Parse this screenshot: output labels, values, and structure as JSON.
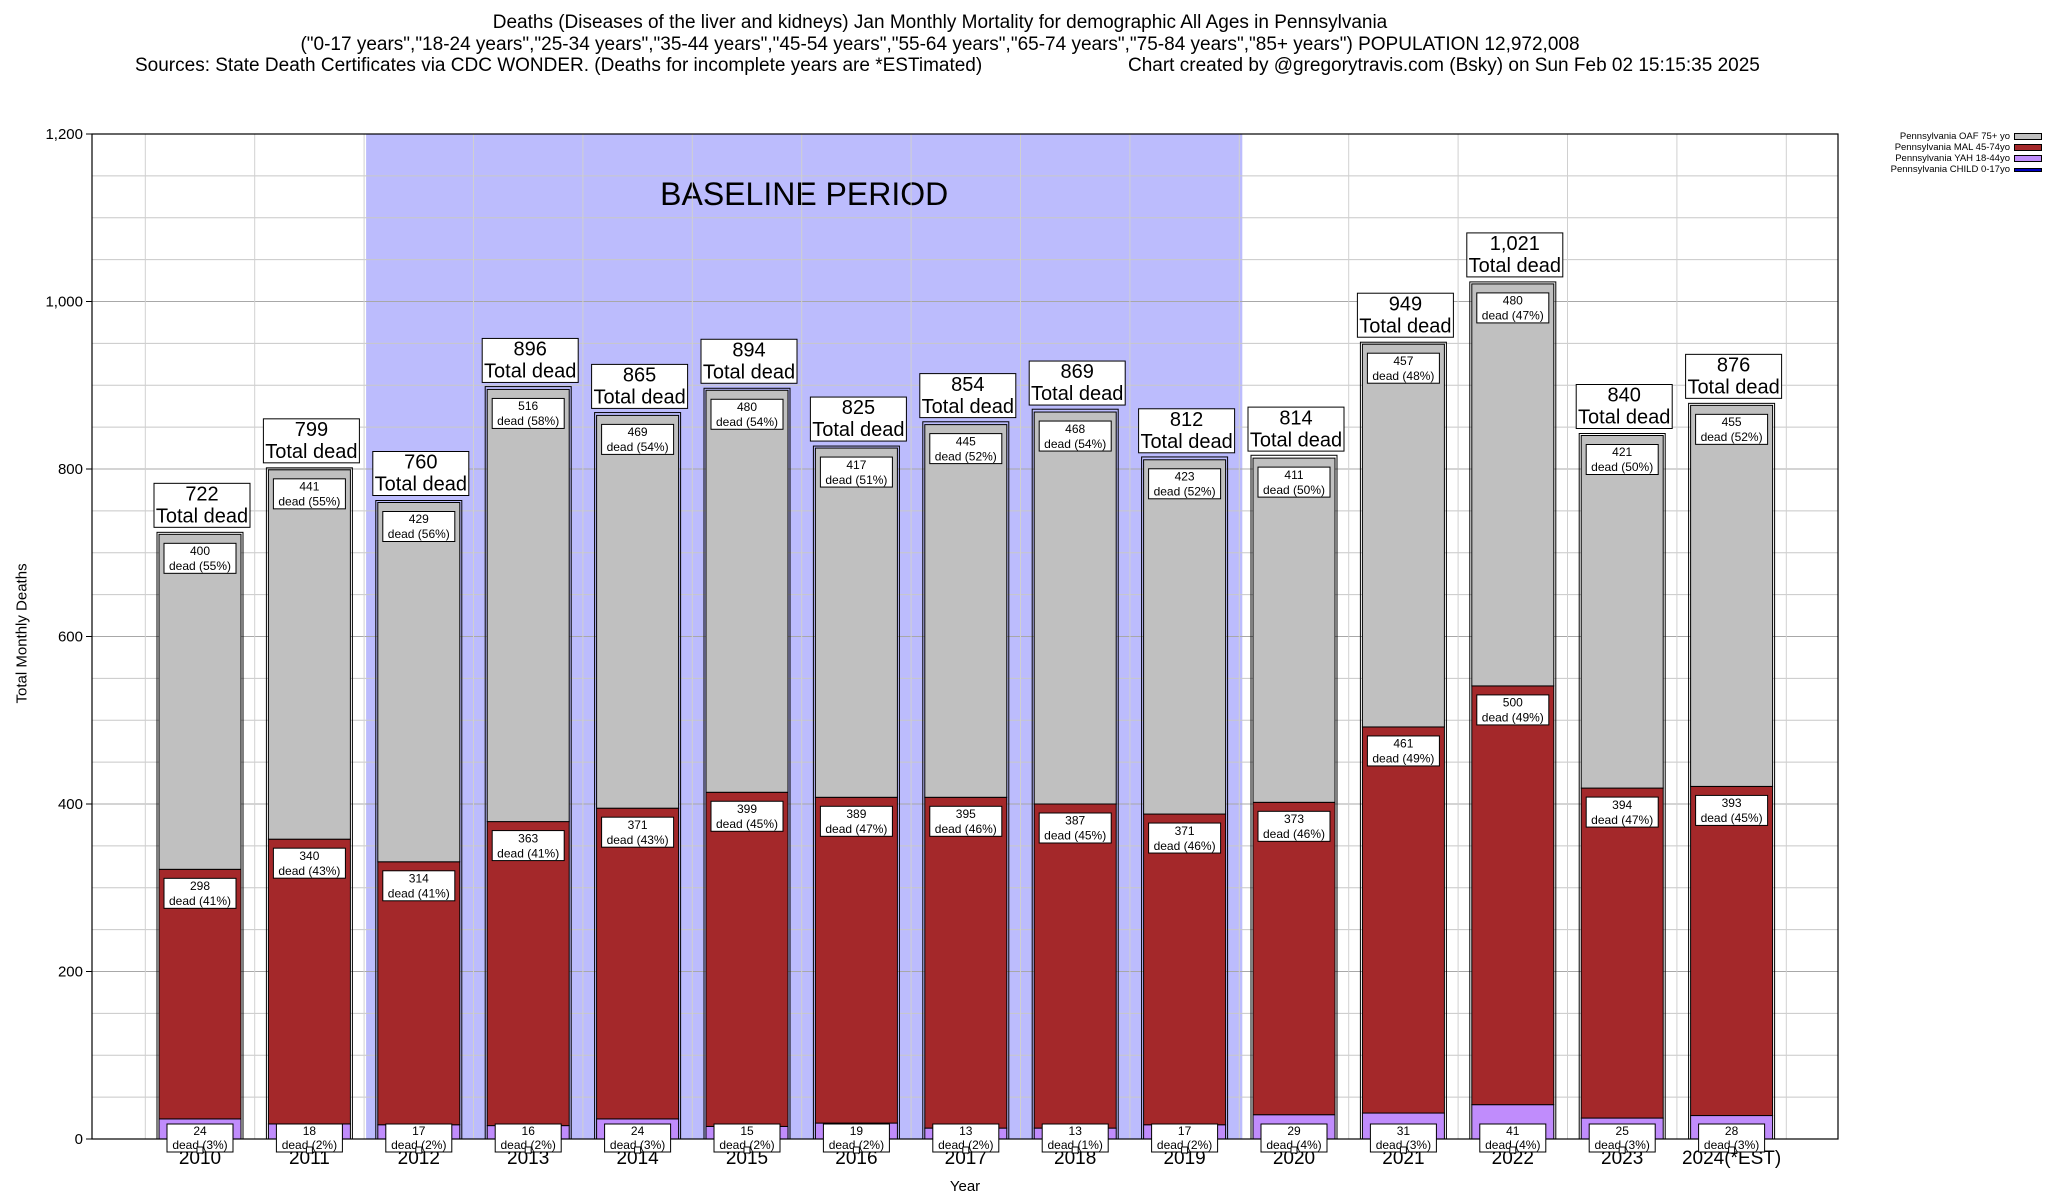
{
  "header": {
    "title_line1": "Deaths (Diseases of the liver and kidneys) Jan Monthly Mortality for demographic All Ages in Pennsylvania",
    "title_line2": "(\"0-17 years\",\"18-24 years\",\"25-34 years\",\"35-44 years\",\"45-54 years\",\"55-64 years\",\"65-74 years\",\"75-84 years\",\"85+ years\") POPULATION 12,972,008",
    "title_line3_left": "Sources: State Death Certificates via CDC WONDER. (Deaths for incomplete years are *ESTimated)",
    "title_line3_right": "Chart created by @gregorytravis.com (Bsky) on Sun Feb 02 15:15:35 2025"
  },
  "chart_data": {
    "type": "bar",
    "stacked": true,
    "title": "Deaths (Diseases of the liver and kidneys) Jan Monthly Mortality for demographic All Ages in Pennsylvania",
    "xlabel": "Year",
    "ylabel": "Total Monthly Deaths",
    "ylim": [
      0,
      1200
    ],
    "yticks": [
      0,
      200,
      400,
      600,
      800,
      1000,
      1200
    ],
    "ytick_labels": [
      "0",
      "200",
      "400",
      "600",
      "800",
      "1,000",
      "1,200"
    ],
    "grid": true,
    "legend_position": "top-right",
    "categories": [
      "2010",
      "2011",
      "2012",
      "2013",
      "2014",
      "2015",
      "2016",
      "2017",
      "2018",
      "2019",
      "2020",
      "2021",
      "2022",
      "2023",
      "2024(*EST)"
    ],
    "totals": [
      722,
      799,
      760,
      896,
      865,
      894,
      825,
      854,
      869,
      812,
      814,
      949,
      1021,
      840,
      876
    ],
    "total_labels": [
      "722",
      "799",
      "760",
      "896",
      "865",
      "894",
      "825",
      "854",
      "869",
      "812",
      "814",
      "949",
      "1,021",
      "840",
      "876"
    ],
    "total_suffix": "Total dead",
    "baseline": {
      "label": "BASELINE PERIOD",
      "from": "2012",
      "to": "2019",
      "color": "#bcbcfd"
    },
    "series": [
      {
        "name": "Pennsylvania CHILD 0-17yo",
        "color": "#0000c0",
        "values": [
          0,
          0,
          0,
          0,
          0,
          0,
          0,
          0,
          0,
          0,
          0,
          0,
          0,
          0,
          0
        ],
        "labels": []
      },
      {
        "name": "Pennsylvania YAH 18-44yo",
        "color": "#c08cfc",
        "values": [
          24,
          18,
          17,
          16,
          24,
          15,
          19,
          13,
          13,
          17,
          29,
          31,
          41,
          25,
          28
        ],
        "labels": [
          [
            "24",
            "dead (3%)"
          ],
          [
            "18",
            "dead (2%)"
          ],
          [
            "17",
            "dead (2%)"
          ],
          [
            "16",
            "dead (2%)"
          ],
          [
            "24",
            "dead (3%)"
          ],
          [
            "15",
            "dead (2%)"
          ],
          [
            "19",
            "dead (2%)"
          ],
          [
            "13",
            "dead (2%)"
          ],
          [
            "13",
            "dead (1%)"
          ],
          [
            "17",
            "dead (2%)"
          ],
          [
            "29",
            "dead (4%)"
          ],
          [
            "31",
            "dead (3%)"
          ],
          [
            "41",
            "dead (4%)"
          ],
          [
            "25",
            "dead (3%)"
          ],
          [
            "28",
            "dead (3%)"
          ]
        ]
      },
      {
        "name": "Pennsylvania MAL 45-74yo",
        "color": "#a4282a",
        "values": [
          298,
          340,
          314,
          363,
          371,
          399,
          389,
          395,
          387,
          371,
          373,
          461,
          500,
          394,
          393
        ],
        "labels": [
          [
            "298",
            "dead (41%)"
          ],
          [
            "340",
            "dead (43%)"
          ],
          [
            "314",
            "dead (41%)"
          ],
          [
            "363",
            "dead (41%)"
          ],
          [
            "371",
            "dead (43%)"
          ],
          [
            "399",
            "dead (45%)"
          ],
          [
            "389",
            "dead (47%)"
          ],
          [
            "395",
            "dead (46%)"
          ],
          [
            "387",
            "dead (45%)"
          ],
          [
            "371",
            "dead (46%)"
          ],
          [
            "373",
            "dead (46%)"
          ],
          [
            "461",
            "dead (49%)"
          ],
          [
            "500",
            "dead (49%)"
          ],
          [
            "394",
            "dead (47%)"
          ],
          [
            "393",
            "dead (45%)"
          ]
        ]
      },
      {
        "name": "Pennsylvania OAF 75+ yo",
        "color": "#c0c0c0",
        "values": [
          400,
          441,
          429,
          516,
          469,
          480,
          417,
          445,
          468,
          423,
          411,
          457,
          480,
          421,
          455
        ],
        "labels": [
          [
            "400",
            "dead (55%)"
          ],
          [
            "441",
            "dead (55%)"
          ],
          [
            "429",
            "dead (56%)"
          ],
          [
            "516",
            "dead (58%)"
          ],
          [
            "469",
            "dead (54%)"
          ],
          [
            "480",
            "dead (54%)"
          ],
          [
            "417",
            "dead (51%)"
          ],
          [
            "445",
            "dead (52%)"
          ],
          [
            "468",
            "dead (54%)"
          ],
          [
            "423",
            "dead (52%)"
          ],
          [
            "411",
            "dead (50%)"
          ],
          [
            "457",
            "dead (48%)"
          ],
          [
            "480",
            "dead (47%)"
          ],
          [
            "421",
            "dead (50%)"
          ],
          [
            "455",
            "dead (52%)"
          ]
        ]
      }
    ]
  }
}
